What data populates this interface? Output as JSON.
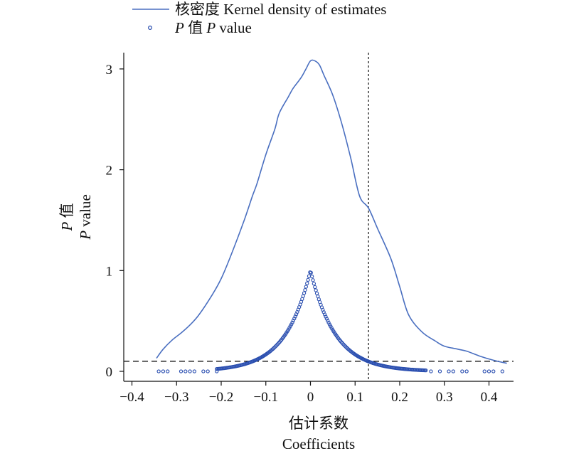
{
  "chart_data": {
    "type": "line+scatter",
    "legend": {
      "placement": "top-center",
      "entries": [
        {
          "series": "density",
          "prefix_cn": "核密度",
          "label": "Kernel density of estimates"
        },
        {
          "series": "pvalue",
          "p1": "P",
          "cn": "值",
          "p2": "P",
          "label": "value"
        }
      ]
    },
    "xlabel": {
      "cn": "估计系数",
      "en": "Coefficients"
    },
    "ylabel": {
      "p1": "P",
      "cn": "值",
      "p2": "P",
      "en": "value"
    },
    "xlim": [
      -0.4,
      0.45
    ],
    "ylim": [
      -0.1,
      3.2
    ],
    "xticks": [
      -0.4,
      -0.3,
      -0.2,
      -0.1,
      0,
      0.1,
      0.2,
      0.3,
      0.4
    ],
    "xtick_labels": [
      "−0.4",
      "−0.3",
      "−0.2",
      "−0.1",
      "0",
      "0.1",
      "0.2",
      "0.3",
      "0.4"
    ],
    "yticks": [
      0,
      1,
      2,
      3
    ],
    "ytick_labels": [
      "0",
      "1",
      "2",
      "3"
    ],
    "reference_lines": [
      {
        "orientation": "horizontal",
        "value": 0.1,
        "style": "dashed"
      },
      {
        "orientation": "vertical",
        "value": 0.13,
        "style": "dotted"
      }
    ],
    "series": [
      {
        "id": "density",
        "kind": "line",
        "color": "#4a6fc0",
        "x": [
          -0.345,
          -0.33,
          -0.31,
          -0.29,
          -0.27,
          -0.25,
          -0.22,
          -0.2,
          -0.18,
          -0.15,
          -0.13,
          -0.12,
          -0.1,
          -0.08,
          -0.07,
          -0.05,
          -0.04,
          -0.03,
          -0.02,
          -0.01,
          0,
          0.01,
          0.02,
          0.03,
          0.05,
          0.07,
          0.09,
          0.11,
          0.13,
          0.15,
          0.18,
          0.2,
          0.22,
          0.25,
          0.28,
          0.3,
          0.33,
          0.35,
          0.38,
          0.41,
          0.44
        ],
        "y": [
          0.13,
          0.22,
          0.31,
          0.38,
          0.46,
          0.56,
          0.76,
          0.92,
          1.13,
          1.48,
          1.74,
          1.86,
          2.15,
          2.4,
          2.56,
          2.72,
          2.8,
          2.86,
          2.92,
          3.0,
          3.08,
          3.08,
          3.04,
          2.94,
          2.74,
          2.46,
          2.12,
          1.74,
          1.62,
          1.42,
          1.12,
          0.84,
          0.56,
          0.39,
          0.3,
          0.25,
          0.22,
          0.2,
          0.15,
          0.11,
          0.08
        ]
      },
      {
        "id": "pvalue",
        "kind": "scatter",
        "color": "#2b4fb0",
        "marker": "open-circle",
        "curve": {
          "peak_x": 0,
          "peak_y": 1.0,
          "decay_scale": 0.056
        },
        "x_range": [
          -0.34,
          0.43
        ],
        "outliers_x": [
          -0.34,
          -0.33,
          -0.32,
          -0.29,
          -0.28,
          -0.27,
          -0.26,
          -0.24,
          -0.23,
          -0.21,
          0.27,
          0.29,
          0.31,
          0.32,
          0.34,
          0.35,
          0.39,
          0.4,
          0.41,
          0.43
        ]
      }
    ]
  }
}
